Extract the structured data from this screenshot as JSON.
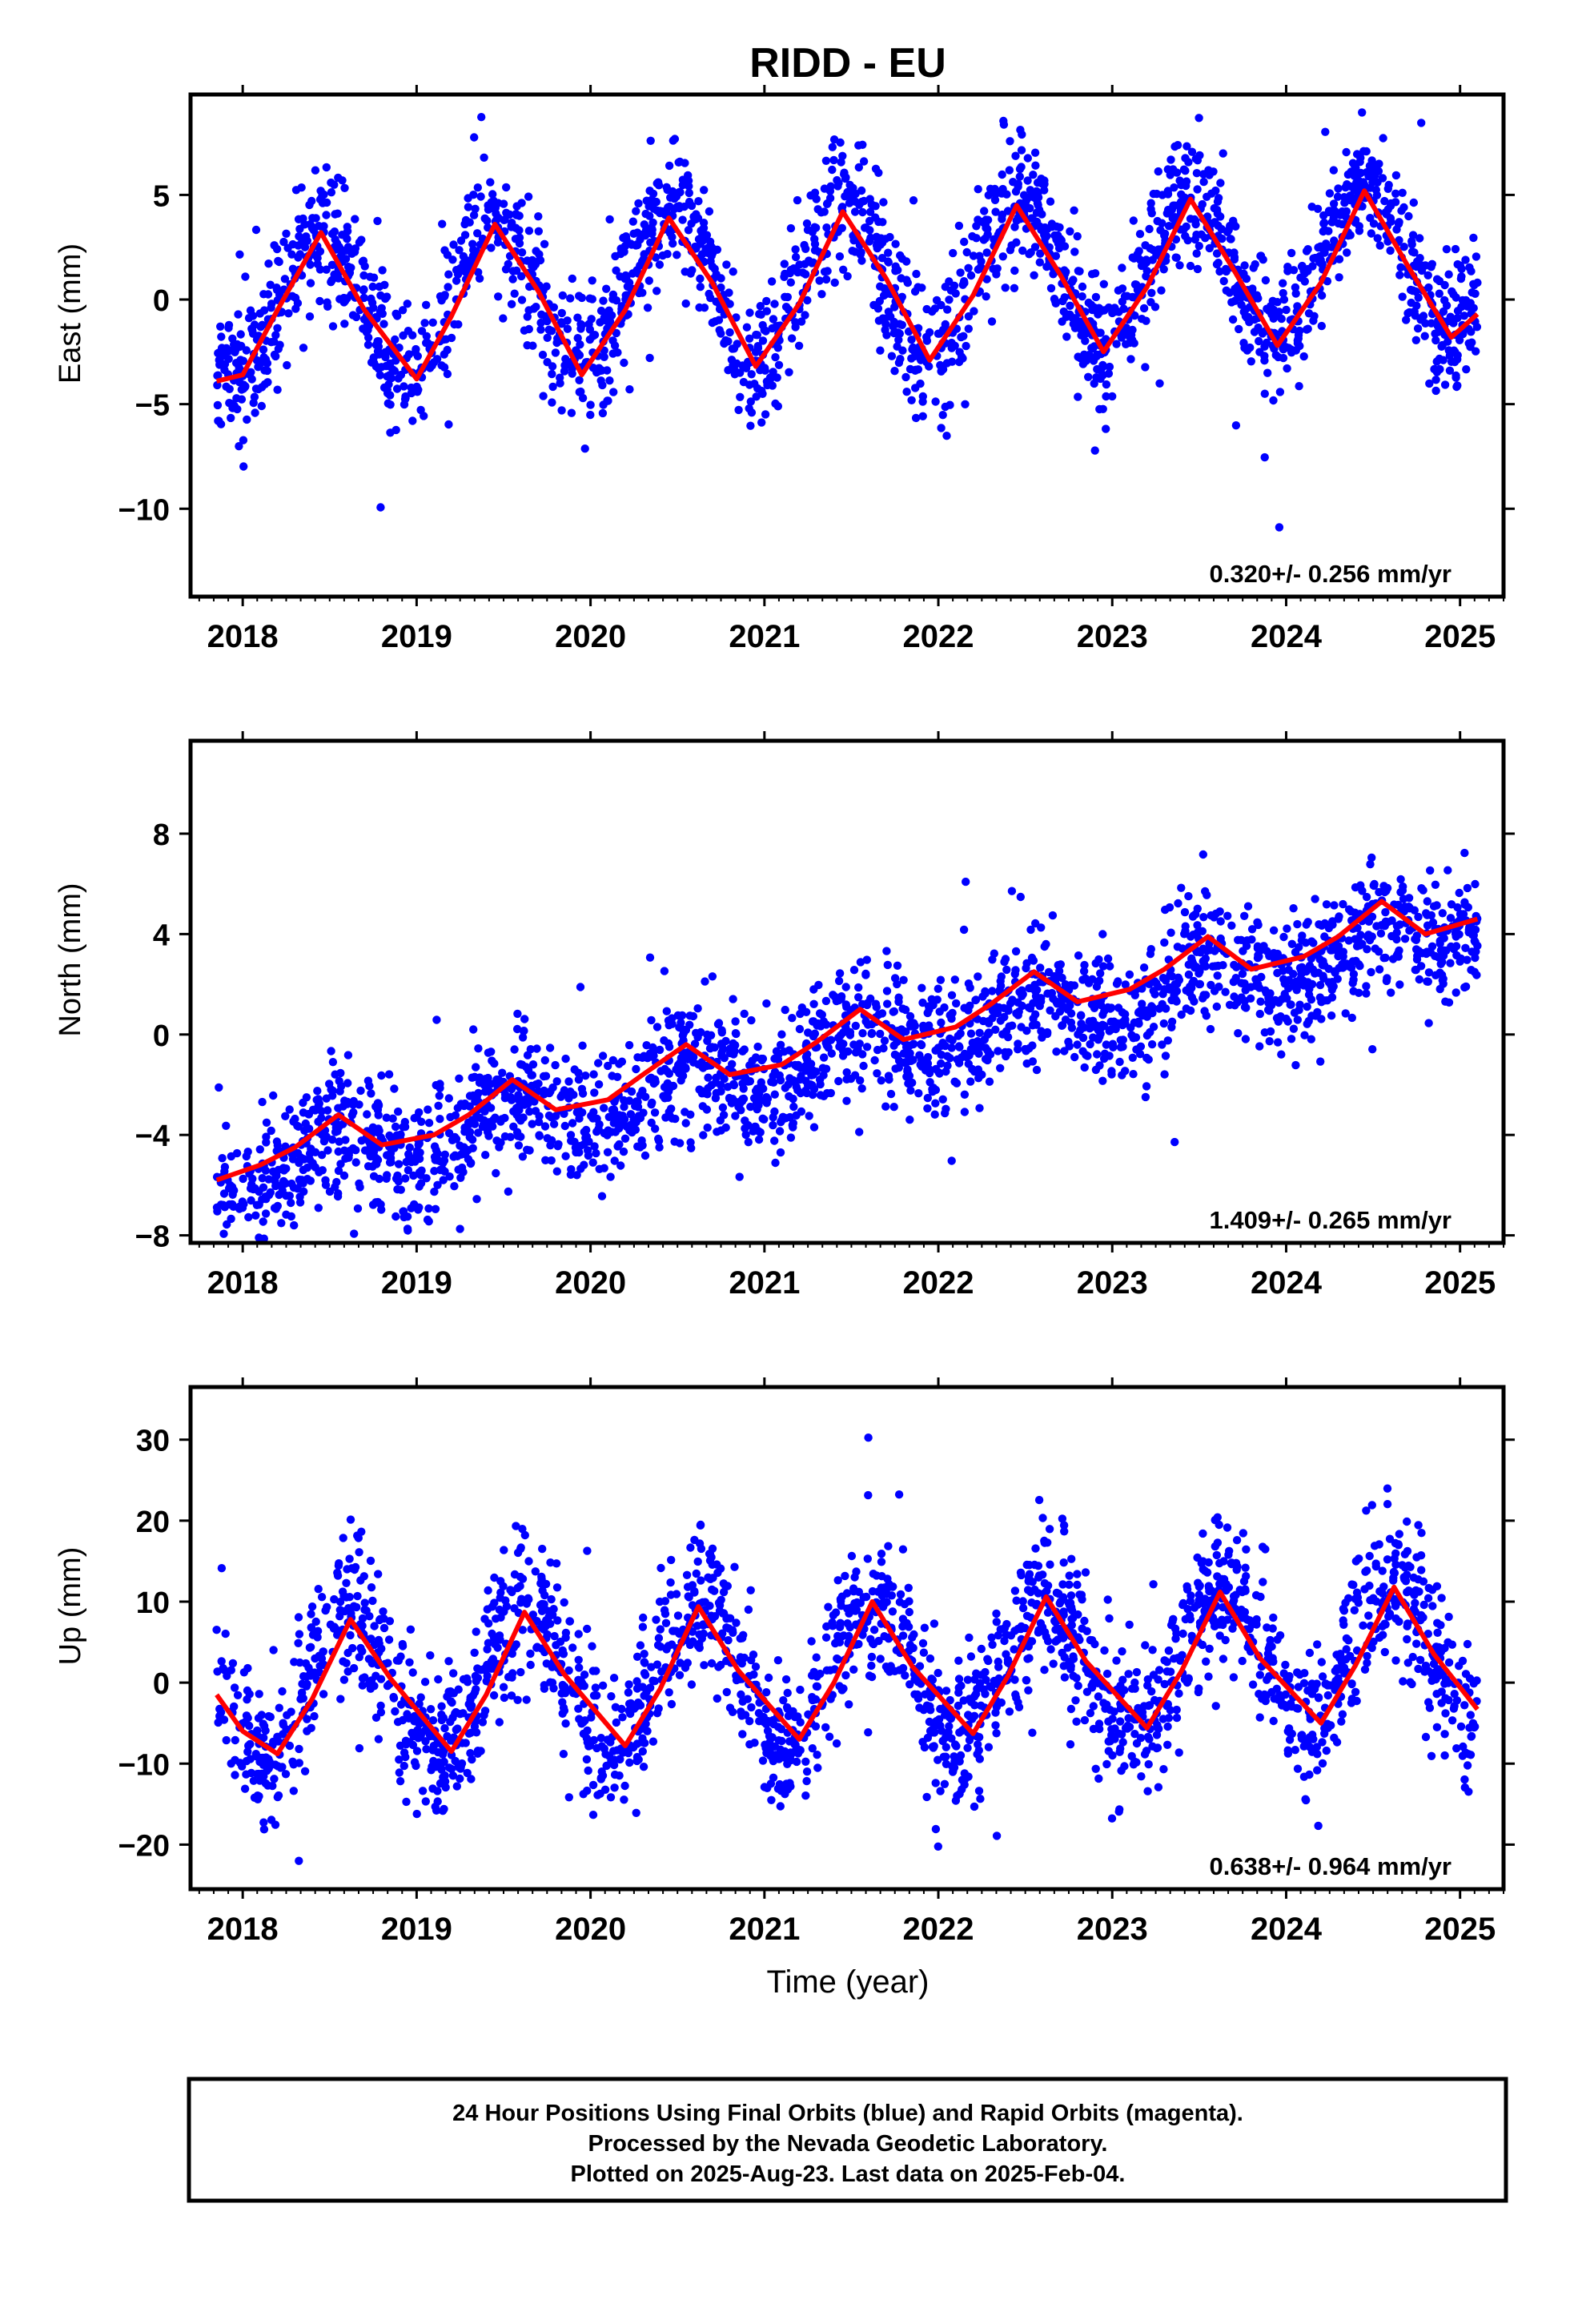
{
  "title": "RIDD - EU",
  "colors": {
    "points": "#0000ff",
    "fit": "#ff0000",
    "axes": "#000000",
    "background": "#ffffff"
  },
  "chart_data": [
    {
      "type": "scatter",
      "ylabel": "East (mm)",
      "xlim": [
        2017.7,
        2025.25
      ],
      "ylim": [
        -14.2,
        9.8
      ],
      "yticks": [
        -10,
        -5,
        0,
        5
      ],
      "xticks": [
        2018,
        2019,
        2020,
        2021,
        2022,
        2023,
        2024,
        2025
      ],
      "rate_label": "0.320+/- 0.256 mm/yr",
      "series": [
        {
          "kind": "points",
          "color": "#0000ff",
          "x_range": [
            2017.85,
            2025.1
          ],
          "seasonal_amplitude": 3.6,
          "peak_phase": 0.45,
          "trend_mm_per_yr": 0.32,
          "offset": -0.3,
          "scatter_sd": 1.6
        },
        {
          "kind": "fit",
          "color": "#ff0000",
          "x": [
            2017.85,
            2018.0,
            2018.2,
            2018.45,
            2018.7,
            2019.0,
            2019.2,
            2019.45,
            2019.7,
            2019.95,
            2020.2,
            2020.45,
            2020.7,
            2020.95,
            2021.2,
            2021.45,
            2021.7,
            2021.95,
            2022.2,
            2022.45,
            2022.7,
            2022.95,
            2023.2,
            2023.45,
            2023.7,
            2023.95,
            2024.2,
            2024.45,
            2024.7,
            2024.95,
            2025.1
          ],
          "y": [
            -3.9,
            -3.6,
            -0.5,
            3.2,
            -0.5,
            -3.8,
            -0.8,
            3.6,
            0.4,
            -3.6,
            -0.5,
            3.9,
            0.8,
            -3.2,
            -0.2,
            4.2,
            1.0,
            -2.9,
            0.2,
            4.5,
            1.2,
            -2.5,
            0.6,
            4.8,
            1.4,
            -2.2,
            0.8,
            5.2,
            1.6,
            -1.8,
            -0.7
          ]
        }
      ]
    },
    {
      "type": "scatter",
      "ylabel": "North (mm)",
      "xlim": [
        2017.7,
        2025.25
      ],
      "ylim": [
        -8.3,
        11.7
      ],
      "yticks": [
        -8,
        -4,
        0,
        4,
        8
      ],
      "xticks": [
        2018,
        2019,
        2020,
        2021,
        2022,
        2023,
        2024,
        2025
      ],
      "rate_label": "1.409+/- 0.265 mm/yr",
      "series": [
        {
          "kind": "points",
          "color": "#0000ff",
          "x_range": [
            2017.85,
            2025.1
          ],
          "seasonal_amplitude": 0.9,
          "peak_phase": 0.55,
          "trend_mm_per_yr": 1.409,
          "offset": -5.8,
          "scatter_sd": 1.3
        },
        {
          "kind": "fit",
          "color": "#ff0000",
          "x": [
            2017.85,
            2018.1,
            2018.3,
            2018.55,
            2018.8,
            2019.1,
            2019.3,
            2019.55,
            2019.8,
            2020.1,
            2020.3,
            2020.55,
            2020.8,
            2021.1,
            2021.3,
            2021.55,
            2021.8,
            2022.1,
            2022.3,
            2022.55,
            2022.8,
            2023.1,
            2023.3,
            2023.55,
            2023.8,
            2024.1,
            2024.3,
            2024.55,
            2024.8,
            2025.1
          ],
          "y": [
            -5.8,
            -5.2,
            -4.5,
            -3.2,
            -4.4,
            -4.0,
            -3.2,
            -1.8,
            -3.0,
            -2.6,
            -1.6,
            -0.4,
            -1.6,
            -1.2,
            -0.3,
            1.0,
            -0.2,
            0.3,
            1.2,
            2.5,
            1.3,
            1.8,
            2.6,
            3.9,
            2.6,
            3.1,
            3.9,
            5.3,
            4.0,
            4.6
          ]
        }
      ]
    },
    {
      "type": "scatter",
      "ylabel": "Up (mm)",
      "xlabel": "Time (year)",
      "xlim": [
        2017.7,
        2025.25
      ],
      "ylim": [
        -25.5,
        36.5
      ],
      "yticks": [
        -20,
        -10,
        0,
        10,
        20,
        30
      ],
      "xticks": [
        2018,
        2019,
        2020,
        2021,
        2022,
        2023,
        2024,
        2025
      ],
      "rate_label": "0.638+/- 0.964 mm/yr",
      "series": [
        {
          "kind": "points",
          "color": "#0000ff",
          "x_range": [
            2017.85,
            2025.1
          ],
          "seasonal_amplitude": 8.5,
          "peak_phase": 0.62,
          "trend_mm_per_yr": 0.638,
          "offset": -1.0,
          "scatter_sd": 4.5
        },
        {
          "kind": "fit",
          "color": "#ff0000",
          "x": [
            2017.85,
            2018.0,
            2018.2,
            2018.4,
            2018.62,
            2018.85,
            2019.2,
            2019.4,
            2019.62,
            2019.85,
            2020.2,
            2020.4,
            2020.62,
            2020.85,
            2021.2,
            2021.4,
            2021.62,
            2021.85,
            2022.2,
            2022.4,
            2022.62,
            2022.85,
            2023.2,
            2023.4,
            2023.62,
            2023.85,
            2024.2,
            2024.4,
            2024.62,
            2024.85,
            2025.1
          ],
          "y": [
            -1.5,
            -6.0,
            -8.8,
            -2.0,
            7.8,
            0.5,
            -8.5,
            -1.5,
            8.7,
            1.0,
            -7.8,
            -0.8,
            9.4,
            1.5,
            -7.0,
            0.0,
            10.0,
            2.0,
            -6.3,
            0.8,
            10.6,
            2.6,
            -5.6,
            1.5,
            11.2,
            3.0,
            -5.0,
            2.2,
            11.8,
            3.5,
            -3.3
          ]
        }
      ]
    }
  ],
  "footer": {
    "line1": "24 Hour Positions Using Final Orbits (blue) and Rapid Orbits (magenta).",
    "line2": "Processed by the Nevada Geodetic Laboratory.",
    "line3": "Plotted on 2025-Aug-23. Last data on 2025-Feb-04."
  }
}
